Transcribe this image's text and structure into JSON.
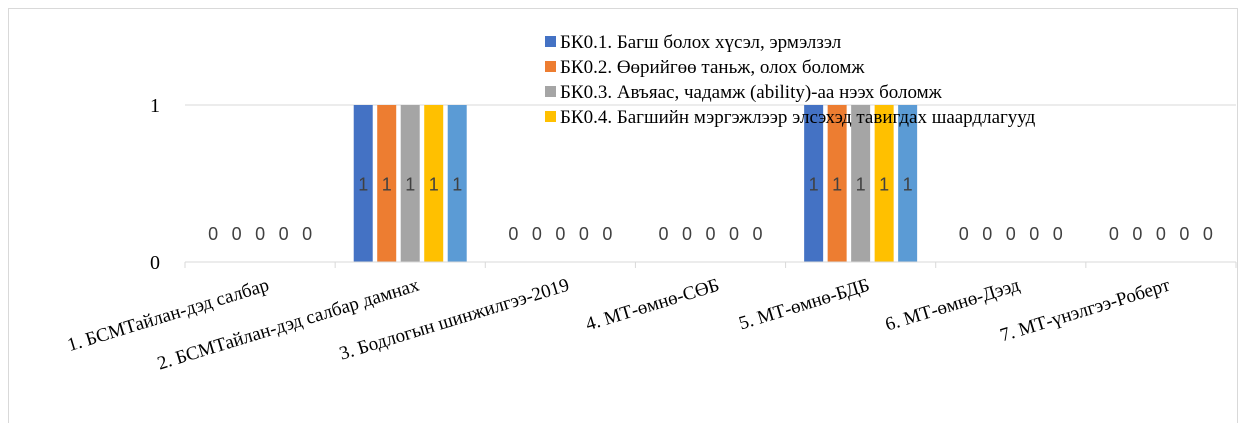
{
  "chart_data": {
    "type": "bar",
    "title": "",
    "xlabel": "",
    "ylabel": "",
    "ylim": [
      0,
      1
    ],
    "yticks": [
      "0",
      "1"
    ],
    "grid": true,
    "legend_position": "top-right",
    "categories": [
      "1. БСМТайлан-дэд салбар",
      "2. БСМТайлан-дэд салбар дамнах",
      "3. Бодлогын шинжилгээ-2019",
      "4. МТ-өмнө-СӨБ",
      "5. МТ-өмнө-БДБ",
      "6. МТ-өмнө-Дээд",
      "7. МТ-үнэлгээ-Роберт"
    ],
    "series": [
      {
        "name": "БК0.1. Багш болох хүсэл, эрмэлзэл",
        "color": "#4472C4",
        "values": [
          0,
          1,
          0,
          0,
          1,
          0,
          0
        ]
      },
      {
        "name": "БК0.2. Өөрийгөө таньж, олох боломж",
        "color": "#ED7D31",
        "values": [
          0,
          1,
          0,
          0,
          1,
          0,
          0
        ]
      },
      {
        "name": "БК0.3. Авъяас, чадамж (ability)-аа нээх боломж",
        "color": "#A5A5A5",
        "values": [
          0,
          1,
          0,
          0,
          1,
          0,
          0
        ]
      },
      {
        "name": "БК0.4. Багшийн мэргэжлээр элсэхэд тавигдах шаардлагууд",
        "color": "#FFC000",
        "values": [
          0,
          1,
          0,
          0,
          1,
          0,
          0
        ]
      },
      {
        "name": "",
        "color": "#5B9BD5",
        "values": [
          0,
          1,
          0,
          0,
          1,
          0,
          0
        ]
      }
    ]
  }
}
